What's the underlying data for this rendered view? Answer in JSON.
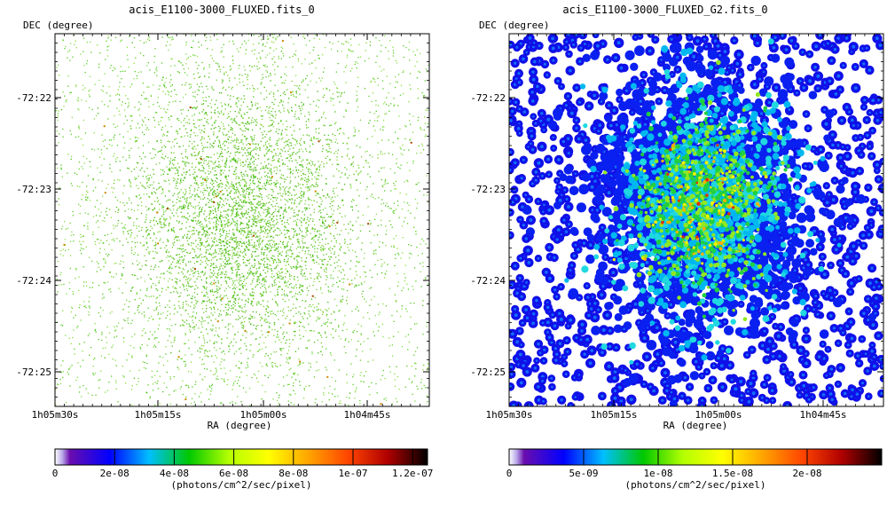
{
  "chart_data": [
    {
      "type": "heatmap",
      "title": "acis_E1100-3000_FLUXED.fits_0",
      "xlabel": "RA (degree)",
      "ylabel": "DEC (degree)",
      "x_ticks": [
        "1h05m30s",
        "1h05m15s",
        "1h05m00s",
        "1h04m45s"
      ],
      "y_ticks": [
        "-72:22",
        "-72:23",
        "-72:24",
        "-72:25"
      ],
      "colorbar": {
        "ticks": [
          "0",
          "2e-08",
          "4e-08",
          "6e-08",
          "8e-08",
          "1e-07",
          "1.2e-07"
        ],
        "tick_values": [
          0,
          2e-08,
          4e-08,
          6e-08,
          8e-08,
          1e-07,
          1.2e-07
        ],
        "range": [
          0,
          1.25e-07
        ],
        "label": "(photons/cm^2/sec/pixel)"
      },
      "render": "sparse-events",
      "palette": [
        "#ffffff",
        "#6a0dad",
        "#0000ff",
        "#00bfff",
        "#00c800",
        "#b4ff00",
        "#ffff00",
        "#ffa500",
        "#ff4500",
        "#b00000",
        "#000000"
      ]
    },
    {
      "type": "heatmap",
      "title": "acis_E1100-3000_FLUXED_G2.fits_0",
      "xlabel": "RA (degree)",
      "ylabel": "DEC (degree)",
      "x_ticks": [
        "1h05m30s",
        "1h05m15s",
        "1h05m00s",
        "1h04m45s"
      ],
      "y_ticks": [
        "-72:22",
        "-72:23",
        "-72:24",
        "-72:25"
      ],
      "colorbar": {
        "ticks": [
          "0",
          "5e-09",
          "1e-08",
          "1.5e-08",
          "2e-08"
        ],
        "tick_values": [
          0,
          5e-09,
          1e-08,
          1.5e-08,
          2e-08
        ],
        "range": [
          0,
          2.5e-08
        ],
        "label": "(photons/cm^2/sec/pixel)"
      },
      "render": "smoothed-blobs",
      "palette": [
        "#ffffff",
        "#6a0dad",
        "#0000ff",
        "#00bfff",
        "#00c800",
        "#b4ff00",
        "#ffff00",
        "#ffa500",
        "#ff4500",
        "#b00000",
        "#000000"
      ]
    }
  ]
}
